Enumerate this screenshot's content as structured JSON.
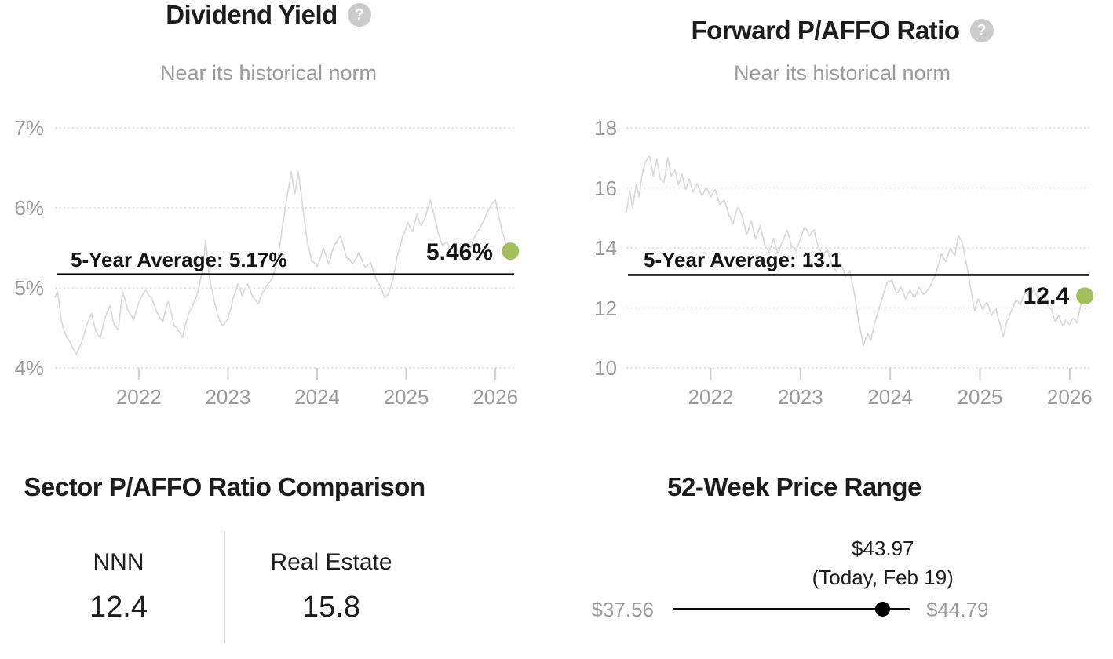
{
  "icons": {
    "help_glyph": "?"
  },
  "colors": {
    "accent_green": "#a4c05c",
    "series_gray": "#d9d9d9",
    "grid_gray": "#d7d7d7",
    "tick_gray": "#cfcfcf",
    "average_line": "#0a0a0a",
    "text_dark": "#1d1d1d",
    "text_gray": "#9b9b9b",
    "range_dot": "#000000"
  },
  "chart_data": [
    {
      "id": "dividend_yield",
      "type": "line",
      "title": "Dividend Yield",
      "subtitle": "Near its historical norm",
      "xlabel": "",
      "ylabel": "",
      "xlim": [
        2021.06,
        2026.21
      ],
      "ylim": [
        4,
        7
      ],
      "grid": "dotted-horizontal",
      "legend_position": "none",
      "y_ticks": [
        {
          "value": 7,
          "label": "7%"
        },
        {
          "value": 6,
          "label": "6%"
        },
        {
          "value": 5,
          "label": "5%"
        },
        {
          "value": 4,
          "label": "4%"
        }
      ],
      "x_ticks": [
        {
          "value": 2022,
          "label": "2022"
        },
        {
          "value": 2023,
          "label": "2023"
        },
        {
          "value": 2024,
          "label": "2024"
        },
        {
          "value": 2025,
          "label": "2025"
        },
        {
          "value": 2026,
          "label": "2026"
        }
      ],
      "average": {
        "value": 5.17,
        "label": "5-Year Average: 5.17%"
      },
      "current": {
        "value": 5.46,
        "label": "5.46%"
      },
      "series": [
        {
          "name": "Dividend Yield",
          "points": [
            [
              2021.06,
              4.88
            ],
            [
              2021.09,
              4.95
            ],
            [
              2021.13,
              4.6
            ],
            [
              2021.18,
              4.42
            ],
            [
              2021.24,
              4.3
            ],
            [
              2021.3,
              4.17
            ],
            [
              2021.36,
              4.32
            ],
            [
              2021.42,
              4.55
            ],
            [
              2021.47,
              4.68
            ],
            [
              2021.52,
              4.45
            ],
            [
              2021.57,
              4.38
            ],
            [
              2021.62,
              4.62
            ],
            [
              2021.68,
              4.78
            ],
            [
              2021.72,
              4.55
            ],
            [
              2021.77,
              4.48
            ],
            [
              2021.82,
              4.95
            ],
            [
              2021.88,
              4.72
            ],
            [
              2021.94,
              4.6
            ],
            [
              2022.0,
              4.82
            ],
            [
              2022.08,
              4.97
            ],
            [
              2022.14,
              4.88
            ],
            [
              2022.2,
              4.7
            ],
            [
              2022.27,
              4.58
            ],
            [
              2022.33,
              4.83
            ],
            [
              2022.4,
              4.52
            ],
            [
              2022.49,
              4.38
            ],
            [
              2022.56,
              4.68
            ],
            [
              2022.62,
              4.82
            ],
            [
              2022.67,
              4.97
            ],
            [
              2022.72,
              5.25
            ],
            [
              2022.75,
              5.6
            ],
            [
              2022.79,
              5.15
            ],
            [
              2022.83,
              4.93
            ],
            [
              2022.88,
              4.68
            ],
            [
              2022.94,
              4.53
            ],
            [
              2023.0,
              4.62
            ],
            [
              2023.06,
              4.88
            ],
            [
              2023.11,
              5.05
            ],
            [
              2023.16,
              4.9
            ],
            [
              2023.22,
              5.05
            ],
            [
              2023.28,
              4.88
            ],
            [
              2023.34,
              4.8
            ],
            [
              2023.4,
              4.96
            ],
            [
              2023.46,
              5.06
            ],
            [
              2023.51,
              5.16
            ],
            [
              2023.56,
              5.35
            ],
            [
              2023.61,
              5.75
            ],
            [
              2023.66,
              6.12
            ],
            [
              2023.71,
              6.45
            ],
            [
              2023.75,
              6.18
            ],
            [
              2023.79,
              6.45
            ],
            [
              2023.84,
              6.0
            ],
            [
              2023.89,
              5.58
            ],
            [
              2023.94,
              5.33
            ],
            [
              2024.0,
              5.27
            ],
            [
              2024.07,
              5.5
            ],
            [
              2024.13,
              5.3
            ],
            [
              2024.2,
              5.55
            ],
            [
              2024.26,
              5.65
            ],
            [
              2024.33,
              5.38
            ],
            [
              2024.4,
              5.3
            ],
            [
              2024.47,
              5.45
            ],
            [
              2024.54,
              5.26
            ],
            [
              2024.6,
              5.32
            ],
            [
              2024.66,
              5.12
            ],
            [
              2024.72,
              5.0
            ],
            [
              2024.76,
              4.88
            ],
            [
              2024.8,
              4.92
            ],
            [
              2024.85,
              5.1
            ],
            [
              2024.9,
              5.4
            ],
            [
              2024.96,
              5.65
            ],
            [
              2025.02,
              5.82
            ],
            [
              2025.07,
              5.7
            ],
            [
              2025.12,
              5.92
            ],
            [
              2025.17,
              5.78
            ],
            [
              2025.23,
              5.95
            ],
            [
              2025.27,
              6.1
            ],
            [
              2025.31,
              5.92
            ],
            [
              2025.36,
              5.68
            ],
            [
              2025.41,
              5.52
            ],
            [
              2025.46,
              5.58
            ],
            [
              2025.51,
              5.38
            ],
            [
              2025.56,
              5.5
            ],
            [
              2025.61,
              5.42
            ],
            [
              2025.66,
              5.56
            ],
            [
              2025.71,
              5.48
            ],
            [
              2025.76,
              5.62
            ],
            [
              2025.81,
              5.72
            ],
            [
              2025.86,
              5.82
            ],
            [
              2025.91,
              5.95
            ],
            [
              2025.96,
              6.05
            ],
            [
              2026.0,
              6.1
            ],
            [
              2026.04,
              5.88
            ],
            [
              2026.08,
              5.68
            ],
            [
              2026.12,
              5.55
            ],
            [
              2026.16,
              5.46
            ]
          ]
        }
      ]
    },
    {
      "id": "forward_p_affo",
      "type": "line",
      "title": "Forward P/AFFO Ratio",
      "subtitle": "Near its historical norm",
      "xlabel": "",
      "ylabel": "",
      "xlim": [
        2021.06,
        2026.22
      ],
      "ylim": [
        10,
        18
      ],
      "grid": "dotted-horizontal",
      "legend_position": "none",
      "y_ticks": [
        {
          "value": 18,
          "label": "18"
        },
        {
          "value": 16,
          "label": "16"
        },
        {
          "value": 14,
          "label": "14"
        },
        {
          "value": 12,
          "label": "12"
        },
        {
          "value": 10,
          "label": "10"
        }
      ],
      "x_ticks": [
        {
          "value": 2022,
          "label": "2022"
        },
        {
          "value": 2023,
          "label": "2023"
        },
        {
          "value": 2024,
          "label": "2024"
        },
        {
          "value": 2025,
          "label": "2025"
        },
        {
          "value": 2026,
          "label": "2026"
        }
      ],
      "average": {
        "value": 13.1,
        "label": "5-Year Average: 13.1"
      },
      "current": {
        "value": 12.4,
        "label": "12.4"
      },
      "series": [
        {
          "name": "Forward P/AFFO Ratio",
          "points": [
            [
              2021.06,
              15.2
            ],
            [
              2021.1,
              15.9
            ],
            [
              2021.13,
              15.3
            ],
            [
              2021.17,
              16.1
            ],
            [
              2021.2,
              15.7
            ],
            [
              2021.24,
              16.5
            ],
            [
              2021.28,
              16.9
            ],
            [
              2021.32,
              17.05
            ],
            [
              2021.36,
              16.4
            ],
            [
              2021.4,
              16.95
            ],
            [
              2021.44,
              16.3
            ],
            [
              2021.48,
              16.2
            ],
            [
              2021.52,
              17.0
            ],
            [
              2021.56,
              16.4
            ],
            [
              2021.6,
              16.6
            ],
            [
              2021.64,
              16.1
            ],
            [
              2021.68,
              16.45
            ],
            [
              2021.72,
              15.95
            ],
            [
              2021.76,
              16.3
            ],
            [
              2021.8,
              15.85
            ],
            [
              2021.85,
              16.15
            ],
            [
              2021.9,
              15.75
            ],
            [
              2021.95,
              16.0
            ],
            [
              2022.0,
              15.7
            ],
            [
              2022.05,
              15.95
            ],
            [
              2022.1,
              15.45
            ],
            [
              2022.15,
              15.6
            ],
            [
              2022.2,
              15.1
            ],
            [
              2022.25,
              14.8
            ],
            [
              2022.3,
              15.35
            ],
            [
              2022.35,
              15.05
            ],
            [
              2022.4,
              14.45
            ],
            [
              2022.45,
              14.9
            ],
            [
              2022.5,
              14.3
            ],
            [
              2022.55,
              14.75
            ],
            [
              2022.6,
              14.1
            ],
            [
              2022.65,
              13.85
            ],
            [
              2022.7,
              14.3
            ],
            [
              2022.75,
              13.8
            ],
            [
              2022.8,
              14.2
            ],
            [
              2022.85,
              14.6
            ],
            [
              2022.9,
              14.05
            ],
            [
              2022.95,
              13.9
            ],
            [
              2023.0,
              14.3
            ],
            [
              2023.05,
              14.7
            ],
            [
              2023.1,
              14.4
            ],
            [
              2023.15,
              14.6
            ],
            [
              2023.2,
              14.05
            ],
            [
              2023.25,
              13.7
            ],
            [
              2023.3,
              13.95
            ],
            [
              2023.35,
              13.45
            ],
            [
              2023.4,
              13.2
            ],
            [
              2023.45,
              13.5
            ],
            [
              2023.5,
              13.05
            ],
            [
              2023.55,
              13.25
            ],
            [
              2023.6,
              12.5
            ],
            [
              2023.65,
              11.5
            ],
            [
              2023.7,
              10.75
            ],
            [
              2023.75,
              11.15
            ],
            [
              2023.78,
              10.9
            ],
            [
              2023.82,
              11.4
            ],
            [
              2023.87,
              11.9
            ],
            [
              2023.92,
              12.4
            ],
            [
              2023.97,
              12.85
            ],
            [
              2024.02,
              12.95
            ],
            [
              2024.07,
              12.5
            ],
            [
              2024.12,
              12.7
            ],
            [
              2024.17,
              12.3
            ],
            [
              2024.22,
              12.6
            ],
            [
              2024.27,
              12.35
            ],
            [
              2024.32,
              12.7
            ],
            [
              2024.37,
              12.45
            ],
            [
              2024.42,
              12.6
            ],
            [
              2024.47,
              12.9
            ],
            [
              2024.52,
              13.25
            ],
            [
              2024.57,
              13.8
            ],
            [
              2024.62,
              13.55
            ],
            [
              2024.67,
              14.0
            ],
            [
              2024.72,
              13.75
            ],
            [
              2024.76,
              14.4
            ],
            [
              2024.8,
              14.2
            ],
            [
              2024.85,
              13.45
            ],
            [
              2024.9,
              12.6
            ],
            [
              2024.94,
              11.9
            ],
            [
              2024.98,
              12.3
            ],
            [
              2025.03,
              11.95
            ],
            [
              2025.08,
              12.2
            ],
            [
              2025.13,
              11.75
            ],
            [
              2025.18,
              11.95
            ],
            [
              2025.22,
              11.5
            ],
            [
              2025.26,
              11.05
            ],
            [
              2025.3,
              11.55
            ],
            [
              2025.35,
              11.9
            ],
            [
              2025.4,
              12.25
            ],
            [
              2025.45,
              12.1
            ],
            [
              2025.5,
              12.5
            ],
            [
              2025.55,
              12.35
            ],
            [
              2025.6,
              12.6
            ],
            [
              2025.65,
              12.3
            ],
            [
              2025.7,
              12.45
            ],
            [
              2025.75,
              12.1
            ],
            [
              2025.8,
              11.95
            ],
            [
              2025.84,
              11.55
            ],
            [
              2025.88,
              11.75
            ],
            [
              2025.92,
              11.4
            ],
            [
              2025.96,
              11.6
            ],
            [
              2026.0,
              11.45
            ],
            [
              2026.04,
              11.65
            ],
            [
              2026.08,
              11.5
            ],
            [
              2026.12,
              12.05
            ],
            [
              2026.16,
              12.4
            ]
          ]
        }
      ]
    },
    {
      "id": "sector_p_affo_comparison",
      "type": "table",
      "title": "Sector P/AFFO Ratio Comparison",
      "columns": [
        {
          "label": "NNN",
          "value": "12.4"
        },
        {
          "label": "Real Estate",
          "value": "15.8"
        }
      ]
    },
    {
      "id": "price_range_52_week",
      "type": "range",
      "title": "52-Week Price Range",
      "low": {
        "value": 37.56,
        "label": "$37.56"
      },
      "high": {
        "value": 44.79,
        "label": "$44.79"
      },
      "current": {
        "value": 43.97,
        "label": "$43.97",
        "note": "(Today, Feb 19)"
      }
    }
  ]
}
